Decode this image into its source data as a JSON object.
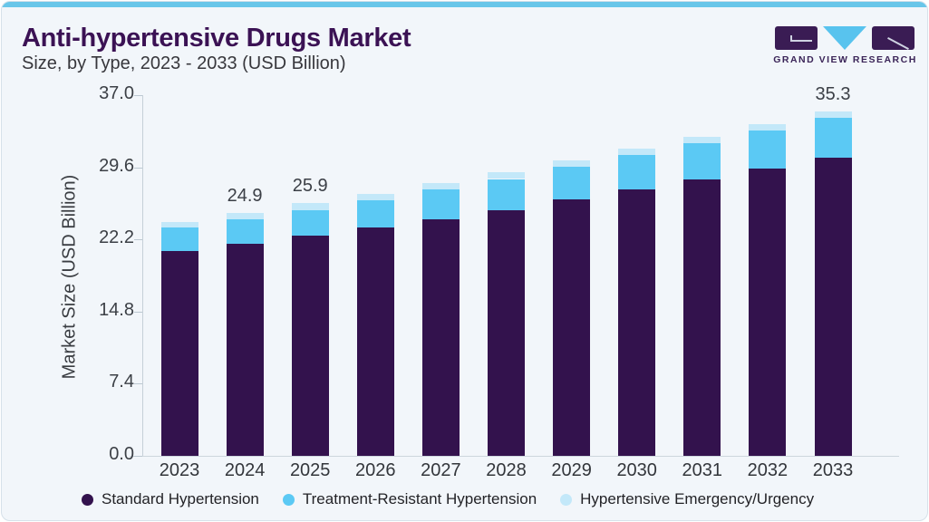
{
  "header": {
    "title": "Anti-hypertensive Drugs Market",
    "subtitle": "Size, by Type, 2023 - 2033 (USD Billion)",
    "logo_text": "GRAND VIEW RESEARCH"
  },
  "colors": {
    "accent_bar": "#69c6e9",
    "title_text": "#3b1254",
    "card_background": "#f2f6fa",
    "standard_hypertension": "#33124d",
    "treatment_resistant": "#5bc9f4",
    "hypertensive_emergency": "#c3e8f9",
    "logo_purple": "#3a1c54",
    "logo_triangle": "#58c3ee"
  },
  "chart_data": {
    "type": "bar",
    "stacked": true,
    "title": "Anti-hypertensive Drugs Market",
    "subtitle": "Size, by Type, 2023 - 2033 (USD Billion)",
    "xlabel": "",
    "ylabel": "Market Size (USD Billion)",
    "ylim": [
      0,
      37
    ],
    "yticks": [
      "0.0",
      "7.4",
      "14.8",
      "22.2",
      "29.6",
      "37.0"
    ],
    "grid": false,
    "legend_position": "bottom",
    "categories": [
      "2023",
      "2024",
      "2025",
      "2026",
      "2027",
      "2028",
      "2029",
      "2030",
      "2031",
      "2032",
      "2033"
    ],
    "series": [
      {
        "name": "Standard Hypertension",
        "color": "#33124d",
        "values": [
          21.0,
          21.8,
          22.6,
          23.4,
          24.3,
          25.2,
          26.3,
          27.3,
          28.4,
          29.5,
          30.6
        ]
      },
      {
        "name": "Treatment-Resistant Hypertension",
        "color": "#5bc9f4",
        "values": [
          2.4,
          2.5,
          2.6,
          2.8,
          3.0,
          3.2,
          3.4,
          3.6,
          3.7,
          3.9,
          4.1
        ]
      },
      {
        "name": "Hypertensive Emergency/Urgency",
        "color": "#c3e8f9",
        "values": [
          0.6,
          0.6,
          0.7,
          0.7,
          0.7,
          0.7,
          0.6,
          0.6,
          0.6,
          0.6,
          0.6
        ]
      }
    ],
    "totals": [
      24.0,
      24.9,
      25.9,
      26.9,
      28.0,
      29.1,
      30.3,
      31.5,
      32.7,
      34.0,
      35.3
    ],
    "bar_labels": {
      "2024": "24.9",
      "2025": "25.9",
      "2033": "35.3"
    }
  }
}
